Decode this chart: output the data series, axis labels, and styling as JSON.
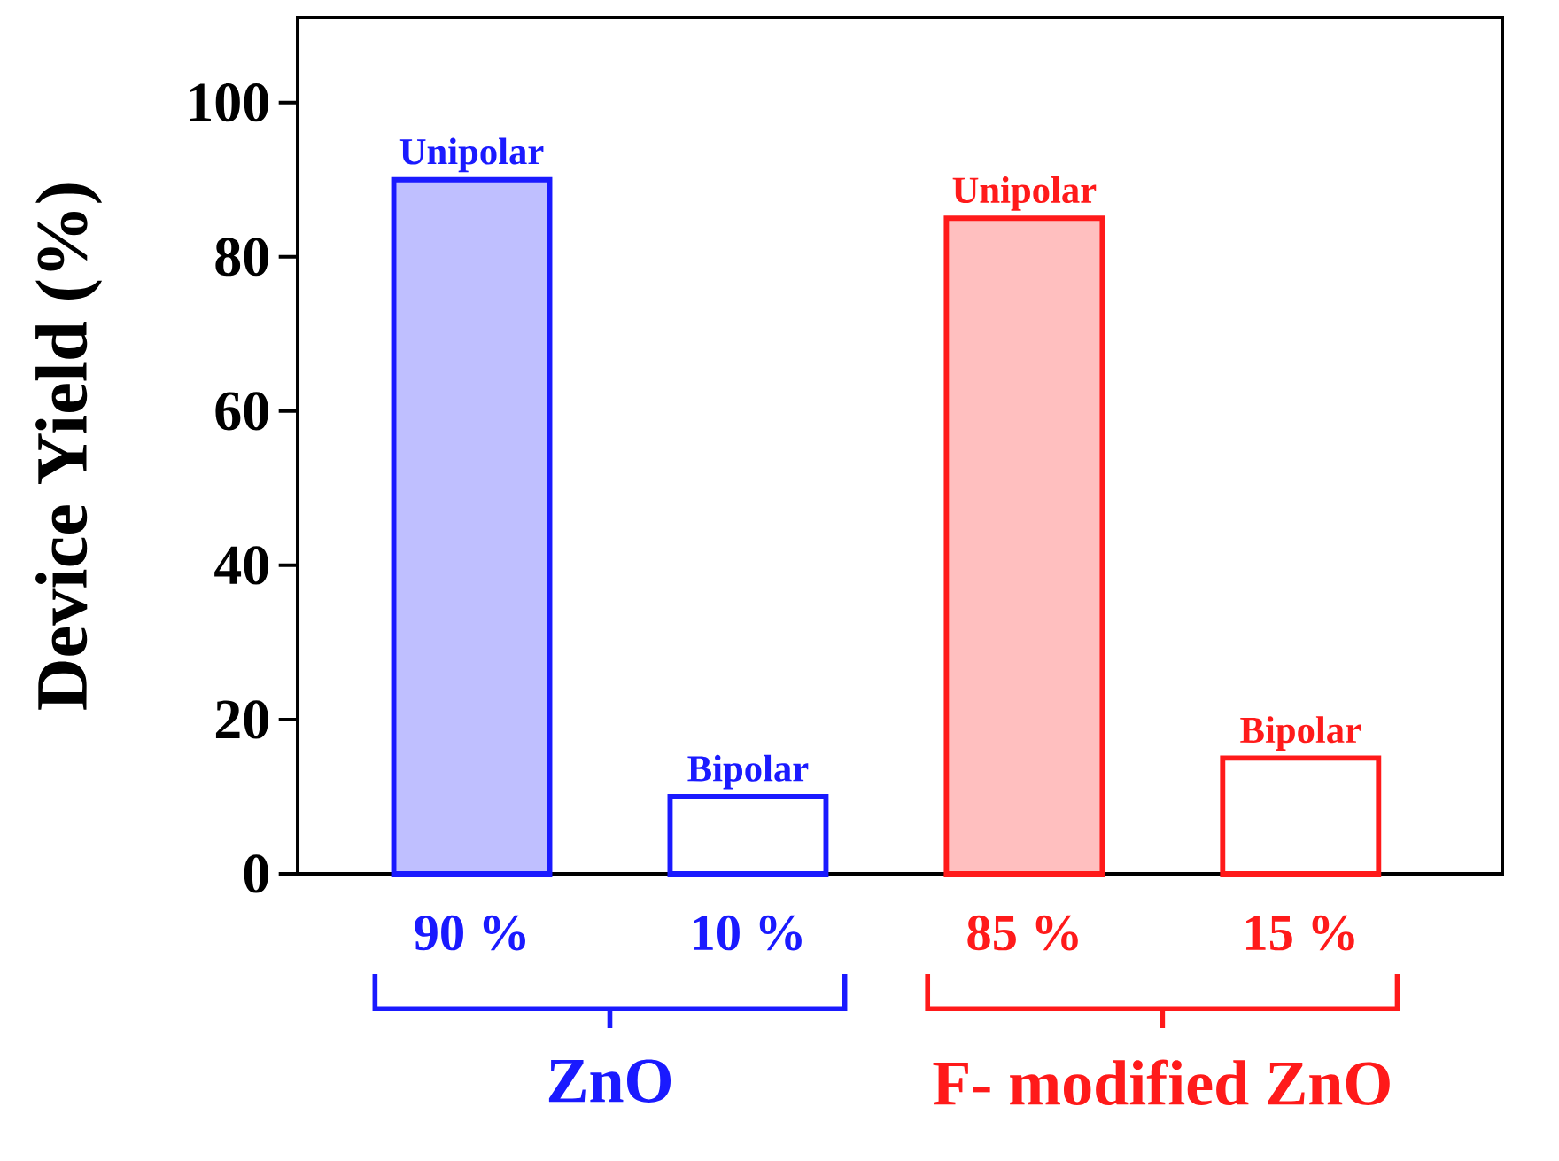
{
  "chart_data": {
    "type": "bar",
    "ylabel": "Device Yield (%)",
    "categories": [
      "90 %",
      "10 %",
      "85 %",
      "15 %"
    ],
    "series": [
      {
        "colors": [
          "#1a1aff",
          null,
          "#ff1a1a",
          null
        ],
        "values": [
          90,
          null,
          85,
          null
        ]
      },
      {
        "colors": [
          null,
          "#1a1aff",
          null,
          "#ff1a1a"
        ],
        "values": [
          null,
          10,
          null,
          15
        ]
      }
    ],
    "ylim": [
      0,
      111
    ],
    "yticks": [
      0,
      20,
      40,
      60,
      80,
      100
    ],
    "annotations": [
      {
        "text": "Unipolar",
        "x": "90 %",
        "y": 90
      },
      {
        "text": "Bipolar",
        "x": "10 %",
        "y": 10
      },
      {
        "text": "Unipolar",
        "x": "85 %",
        "y": 85
      },
      {
        "text": "Bipolar",
        "x": "15 %",
        "y": 15
      },
      "ZnO",
      "F- modified ZnO"
    ]
  }
}
